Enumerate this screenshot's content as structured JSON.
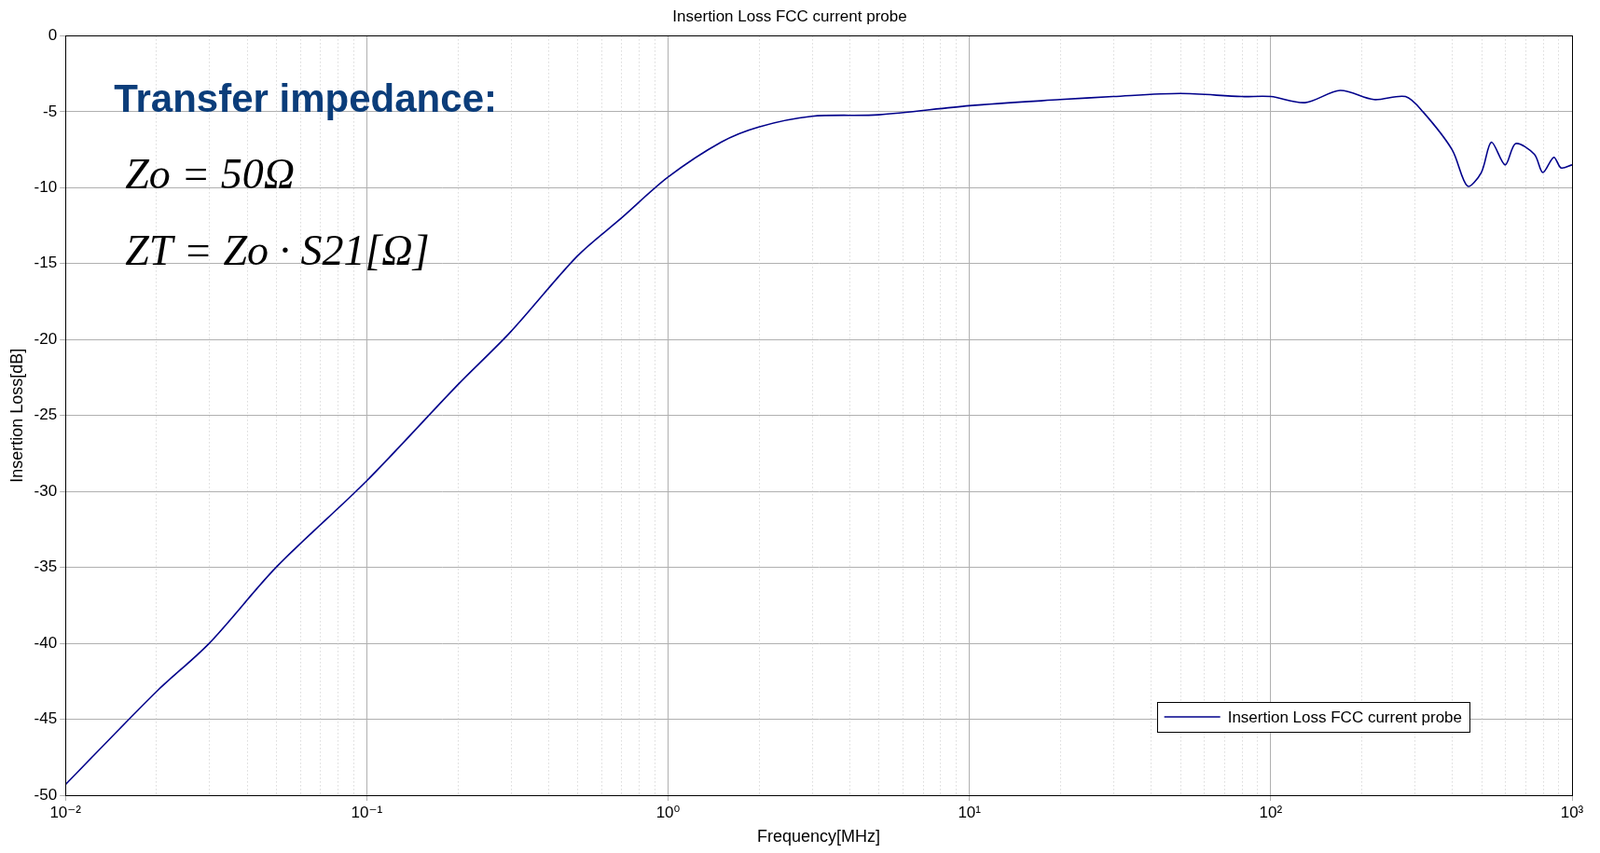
{
  "chart_data": {
    "type": "line",
    "title": "Insertion Loss FCC current probe",
    "x_label": "Frequency[MHz]",
    "y_label": "Insertion Loss[dB]",
    "annotations": [
      "Transfer impedance:",
      "Zo = 50Ω",
      "ZT = Zo · S21[Ω]"
    ],
    "log": "x",
    "grid": true,
    "legend": "lower right",
    "xlim": [
      0.01,
      1000
    ],
    "xticks": [
      {
        "value": 0.01,
        "label": "10⁻²"
      },
      {
        "value": 0.1,
        "label": "10⁻¹"
      },
      {
        "value": 1,
        "label": "10⁰"
      },
      {
        "value": 10,
        "label": "10¹"
      },
      {
        "value": 100,
        "label": "10²"
      },
      {
        "value": 1000,
        "label": "10³"
      }
    ],
    "ylim": [
      -50,
      0
    ],
    "yticks": [
      -50,
      -45,
      -40,
      -35,
      -30,
      -25,
      -20,
      -15,
      -10,
      -5,
      0
    ],
    "x": [
      0.01,
      0.02,
      0.03,
      0.05,
      0.1,
      0.2,
      0.3,
      0.5,
      0.7,
      1,
      1.5,
      2,
      3,
      5,
      10,
      20,
      30,
      50,
      80,
      100,
      130,
      170,
      220,
      280,
      320,
      400,
      450,
      500,
      540,
      600,
      650,
      750,
      800,
      870,
      920,
      1000
    ],
    "series": [
      {
        "name": "Insertion Loss FCC current probe",
        "color": "#00008b",
        "values": [
          -49.3,
          -43.2,
          -40,
          -35,
          -29.3,
          -23,
          -19.5,
          -14.5,
          -12,
          -9.3,
          -7,
          -6,
          -5.3,
          -5.2,
          -4.6,
          -4.2,
          -4,
          -3.8,
          -4,
          -4,
          -4.4,
          -3.6,
          -4.2,
          -4,
          -5,
          -7.5,
          -9.9,
          -9,
          -7,
          -8.5,
          -7.1,
          -7.8,
          -9,
          -8,
          -8.7,
          -8.5
        ]
      }
    ]
  }
}
